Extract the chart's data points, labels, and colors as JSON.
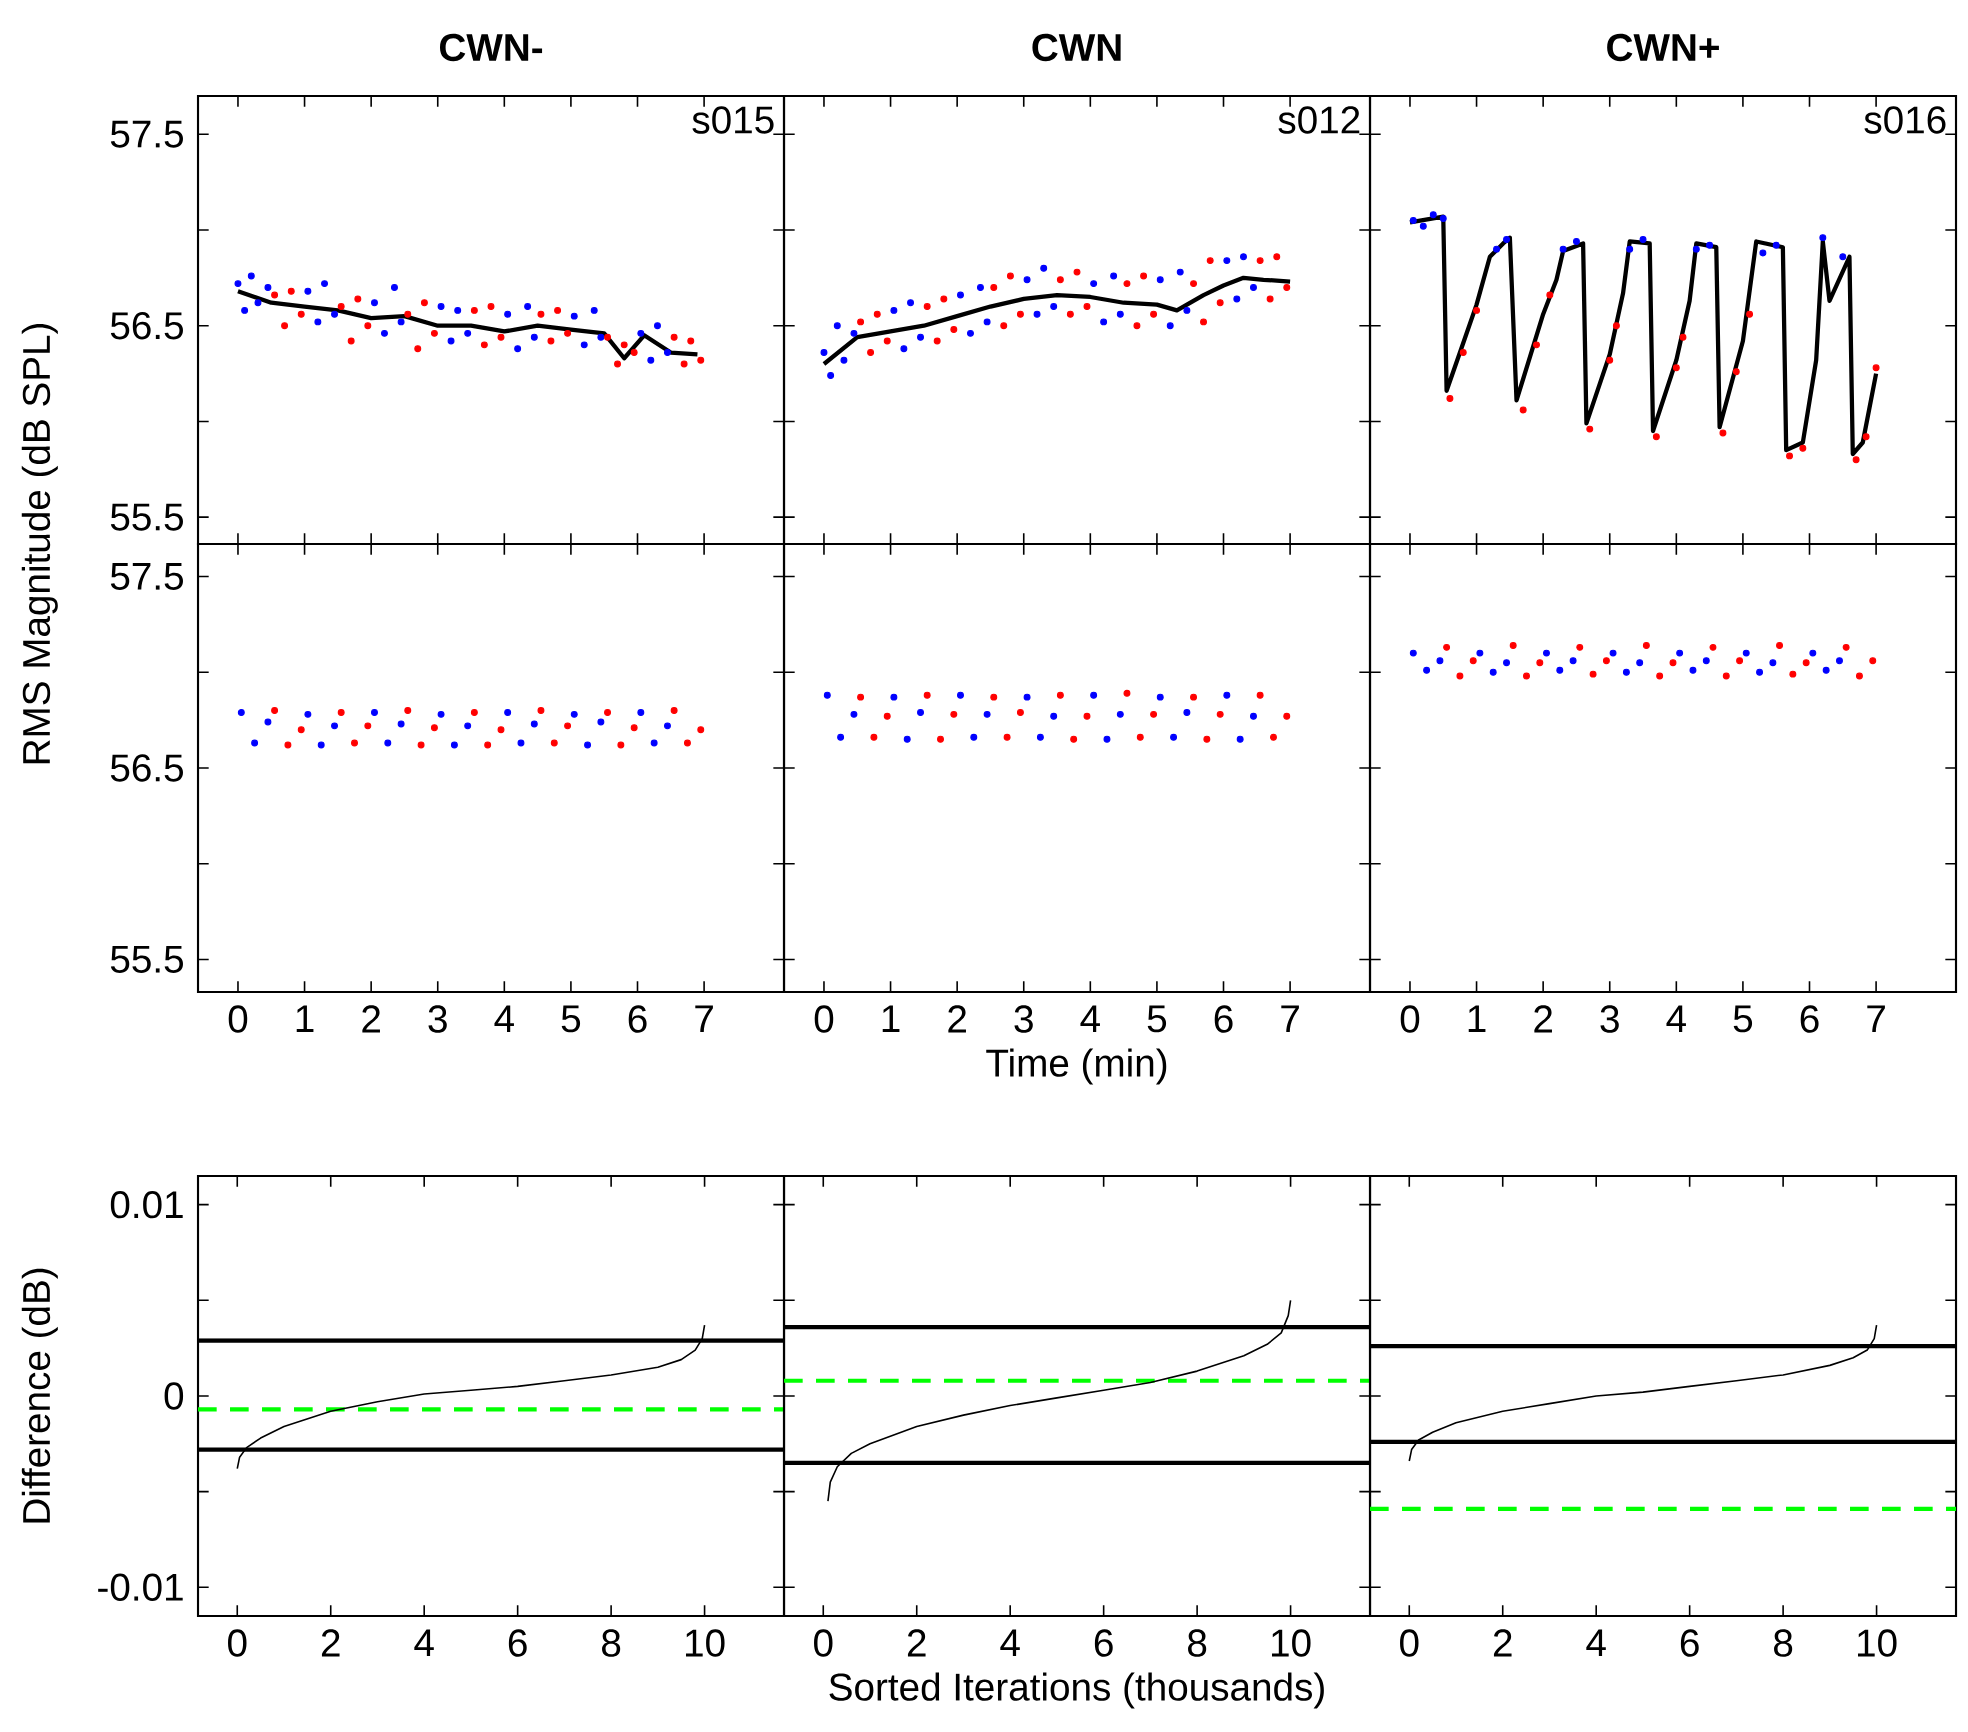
{
  "chart_data": [
    {
      "type": "scatter",
      "title": "CWN-",
      "annotations": [
        "s015"
      ],
      "ylabel": "RMS Magnitude (dB SPL)",
      "xlim": [
        -0.6,
        8.2
      ],
      "ylim": [
        55.36,
        57.7
      ],
      "xticks": [
        0,
        1,
        2,
        3,
        4,
        5,
        6,
        7
      ],
      "yticks": [
        55.5,
        {
          "value": 56,
          "label": null
        },
        56.5,
        {
          "value": 57,
          "label": null
        },
        57.5
      ],
      "tick_labels": "y",
      "marker": "circle",
      "series": [
        {
          "color": "#0000ff",
          "x": [
            0.0,
            0.1,
            0.2,
            0.3,
            0.45,
            1.05,
            1.2,
            1.3,
            1.45,
            2.05,
            2.2,
            2.35,
            2.45,
            3.05,
            3.2,
            3.3,
            3.45,
            4.05,
            4.2,
            4.35,
            4.45,
            5.05,
            5.2,
            5.35,
            5.45,
            6.05,
            6.2,
            6.3,
            6.45
          ],
          "values": [
            56.72,
            56.58,
            56.76,
            56.62,
            56.7,
            56.68,
            56.52,
            56.72,
            56.56,
            56.62,
            56.46,
            56.7,
            56.52,
            56.6,
            56.42,
            56.58,
            56.46,
            56.56,
            56.38,
            56.6,
            56.44,
            56.55,
            56.4,
            56.58,
            56.44,
            56.46,
            56.32,
            56.5,
            56.36
          ]
        },
        {
          "color": "#ff0000",
          "x": [
            0.55,
            0.7,
            0.8,
            0.95,
            1.55,
            1.7,
            1.8,
            1.95,
            2.55,
            2.7,
            2.8,
            2.95,
            3.55,
            3.7,
            3.8,
            3.95,
            4.55,
            4.7,
            4.8,
            4.95,
            5.55,
            5.7,
            5.8,
            5.95,
            6.55,
            6.7,
            6.8,
            6.95
          ],
          "values": [
            56.66,
            56.5,
            56.68,
            56.56,
            56.6,
            56.42,
            56.64,
            56.5,
            56.56,
            56.38,
            56.62,
            56.46,
            56.58,
            56.4,
            56.6,
            56.44,
            56.56,
            56.42,
            56.58,
            56.46,
            56.44,
            56.3,
            56.4,
            56.36,
            56.44,
            56.3,
            56.42,
            56.32
          ]
        },
        {
          "type": "line",
          "marker": "none",
          "color": "#000000",
          "x": [
            0,
            0.5,
            1,
            1.5,
            2,
            2.5,
            3,
            3.5,
            4,
            4.5,
            5,
            5.5,
            5.8,
            6.1,
            6.5,
            6.9
          ],
          "values": [
            56.68,
            56.62,
            56.6,
            56.58,
            56.54,
            56.55,
            56.5,
            56.5,
            56.47,
            56.5,
            56.48,
            56.46,
            56.33,
            56.45,
            56.36,
            56.35
          ]
        }
      ]
    },
    {
      "type": "scatter",
      "title": "CWN",
      "annotations": [
        "s012"
      ],
      "xlim": [
        -0.6,
        8.2
      ],
      "ylim": [
        55.36,
        57.7
      ],
      "xticks": [
        0,
        1,
        2,
        3,
        4,
        5,
        6,
        7
      ],
      "yticks": [
        55.5,
        {
          "value": 56,
          "label": null
        },
        56.5,
        {
          "value": 57,
          "label": null
        },
        57.5
      ],
      "tick_labels": false,
      "marker": "circle",
      "series": [
        {
          "color": "#0000ff",
          "x": [
            0.0,
            0.1,
            0.2,
            0.3,
            0.45,
            1.05,
            1.2,
            1.3,
            1.45,
            2.05,
            2.2,
            2.35,
            2.45,
            3.05,
            3.2,
            3.3,
            3.45,
            4.05,
            4.2,
            4.35,
            4.45,
            5.05,
            5.2,
            5.35,
            5.45,
            6.05,
            6.2,
            6.3,
            6.45
          ],
          "values": [
            56.36,
            56.24,
            56.5,
            56.32,
            56.46,
            56.58,
            56.38,
            56.62,
            56.44,
            56.66,
            56.46,
            56.7,
            56.52,
            56.74,
            56.56,
            56.8,
            56.6,
            56.72,
            56.52,
            56.76,
            56.56,
            56.74,
            56.5,
            56.78,
            56.58,
            56.84,
            56.64,
            56.86,
            56.7
          ]
        },
        {
          "color": "#ff0000",
          "x": [
            0.55,
            0.7,
            0.8,
            0.95,
            1.55,
            1.7,
            1.8,
            1.95,
            2.55,
            2.7,
            2.8,
            2.95,
            3.55,
            3.7,
            3.8,
            3.95,
            4.55,
            4.7,
            4.8,
            4.95,
            5.55,
            5.7,
            5.8,
            5.95,
            6.55,
            6.7,
            6.8,
            6.95
          ],
          "values": [
            56.52,
            56.36,
            56.56,
            56.42,
            56.6,
            56.42,
            56.64,
            56.48,
            56.7,
            56.5,
            56.76,
            56.56,
            56.74,
            56.56,
            56.78,
            56.6,
            56.72,
            56.5,
            56.76,
            56.56,
            56.72,
            56.52,
            56.84,
            56.62,
            56.84,
            56.64,
            56.86,
            56.7
          ]
        },
        {
          "type": "line",
          "marker": "none",
          "color": "#000000",
          "x": [
            0,
            0.5,
            1,
            1.5,
            2,
            2.5,
            3,
            3.5,
            4,
            4.5,
            5,
            5.3,
            5.7,
            6,
            6.3,
            6.6,
            7
          ],
          "values": [
            56.3,
            56.44,
            56.47,
            56.5,
            56.55,
            56.6,
            56.64,
            56.66,
            56.65,
            56.62,
            56.61,
            56.58,
            56.66,
            56.71,
            56.75,
            56.74,
            56.73
          ]
        }
      ]
    },
    {
      "type": "scatter",
      "title": "CWN+",
      "annotations": [
        "s016"
      ],
      "xlim": [
        -0.6,
        8.2
      ],
      "ylim": [
        55.36,
        57.7
      ],
      "xticks": [
        0,
        1,
        2,
        3,
        4,
        5,
        6,
        7
      ],
      "yticks": [
        55.5,
        {
          "value": 56,
          "label": null
        },
        56.5,
        {
          "value": 57,
          "label": null
        },
        57.5
      ],
      "tick_labels": false,
      "marker": "circle",
      "series": [
        {
          "color": "#0000ff",
          "x": [
            0.05,
            0.2,
            0.35,
            0.5,
            1.3,
            1.45,
            2.3,
            2.5,
            3.3,
            3.5,
            4.3,
            4.5,
            5.3,
            5.5,
            6.2,
            6.5
          ],
          "values": [
            57.05,
            57.02,
            57.08,
            57.06,
            56.9,
            56.95,
            56.9,
            56.94,
            56.9,
            56.95,
            56.9,
            56.92,
            56.88,
            56.92,
            56.96,
            56.86
          ]
        },
        {
          "color": "#ff0000",
          "x": [
            0.6,
            0.8,
            1.0,
            1.7,
            1.9,
            2.1,
            2.7,
            3.0,
            3.1,
            3.7,
            4.0,
            4.1,
            4.7,
            4.9,
            5.1,
            5.7,
            5.9,
            6.7,
            6.85,
            7.0
          ],
          "values": [
            56.12,
            56.36,
            56.58,
            56.06,
            56.4,
            56.66,
            55.96,
            56.32,
            56.5,
            55.92,
            56.28,
            56.44,
            55.94,
            56.26,
            56.56,
            55.82,
            55.86,
            55.8,
            55.92,
            56.28
          ]
        },
        {
          "type": "line",
          "marker": "none",
          "color": "#000000",
          "x": [
            0,
            0.5,
            0.55,
            0.8,
            1.0,
            1.2,
            1.4,
            1.5,
            1.6,
            2.0,
            2.2,
            2.3,
            2.6,
            2.65,
            3.0,
            3.2,
            3.3,
            3.6,
            3.65,
            4.0,
            4.2,
            4.3,
            4.6,
            4.65,
            5.0,
            5.2,
            5.6,
            5.65,
            5.9,
            6.1,
            6.2,
            6.3,
            6.6,
            6.65,
            6.8,
            7.0
          ],
          "values": [
            57.04,
            57.07,
            56.16,
            56.41,
            56.61,
            56.86,
            56.93,
            56.96,
            56.11,
            56.56,
            56.74,
            56.89,
            56.93,
            55.99,
            56.35,
            56.67,
            56.94,
            56.93,
            55.95,
            56.32,
            56.63,
            56.93,
            56.91,
            55.97,
            56.42,
            56.94,
            56.91,
            55.85,
            55.89,
            56.32,
            56.94,
            56.63,
            56.86,
            55.83,
            55.89,
            56.25
          ]
        }
      ]
    },
    {
      "type": "scatter",
      "xlim": [
        -0.6,
        8.2
      ],
      "ylim": [
        55.33,
        57.67
      ],
      "xticks": [
        0,
        1,
        2,
        3,
        4,
        5,
        6,
        7
      ],
      "yticks": [
        55.5,
        {
          "value": 56,
          "label": null
        },
        56.5,
        {
          "value": 57,
          "label": null
        },
        57.5
      ],
      "marker": "circle",
      "series": [
        {
          "color": "#0000ff",
          "x": [
            0.05,
            0.25,
            0.45,
            1.05,
            1.25,
            1.45,
            2.05,
            2.25,
            2.45,
            3.05,
            3.25,
            3.45,
            4.05,
            4.25,
            4.45,
            5.05,
            5.25,
            5.45,
            6.05,
            6.25,
            6.45
          ],
          "values": [
            56.79,
            56.63,
            56.74,
            56.78,
            56.62,
            56.72,
            56.79,
            56.63,
            56.73,
            56.78,
            56.62,
            56.72,
            56.79,
            56.63,
            56.73,
            56.78,
            56.62,
            56.74,
            56.79,
            56.63,
            56.72
          ]
        },
        {
          "color": "#ff0000",
          "x": [
            0.55,
            0.75,
            0.95,
            1.55,
            1.75,
            1.95,
            2.55,
            2.75,
            2.95,
            3.55,
            3.75,
            3.95,
            4.55,
            4.75,
            4.95,
            5.55,
            5.75,
            5.95,
            6.55,
            6.75,
            6.95
          ],
          "values": [
            56.8,
            56.62,
            56.7,
            56.79,
            56.63,
            56.72,
            56.8,
            56.62,
            56.71,
            56.79,
            56.62,
            56.7,
            56.8,
            56.63,
            56.72,
            56.79,
            56.62,
            56.71,
            56.8,
            56.63,
            56.7
          ]
        }
      ]
    },
    {
      "type": "scatter",
      "xlabel": "Time (min)",
      "xlim": [
        -0.6,
        8.2
      ],
      "ylim": [
        55.33,
        57.67
      ],
      "xticks": [
        0,
        1,
        2,
        3,
        4,
        5,
        6,
        7
      ],
      "yticks": [
        55.5,
        {
          "value": 56,
          "label": null
        },
        56.5,
        {
          "value": 57,
          "label": null
        },
        57.5
      ],
      "tick_labels": "x",
      "marker": "circle",
      "series": [
        {
          "color": "#0000ff",
          "x": [
            0.05,
            0.25,
            0.45,
            1.05,
            1.25,
            1.45,
            2.05,
            2.25,
            2.45,
            3.05,
            3.25,
            3.45,
            4.05,
            4.25,
            4.45,
            5.05,
            5.25,
            5.45,
            6.05,
            6.25,
            6.45
          ],
          "values": [
            56.88,
            56.66,
            56.78,
            56.87,
            56.65,
            56.79,
            56.88,
            56.66,
            56.78,
            56.87,
            56.66,
            56.77,
            56.88,
            56.65,
            56.78,
            56.87,
            56.66,
            56.79,
            56.88,
            56.65,
            56.77
          ]
        },
        {
          "color": "#ff0000",
          "x": [
            0.55,
            0.75,
            0.95,
            1.55,
            1.75,
            1.95,
            2.55,
            2.75,
            2.95,
            3.55,
            3.75,
            3.95,
            4.55,
            4.75,
            4.95,
            5.55,
            5.75,
            5.95,
            6.55,
            6.75,
            6.95
          ],
          "values": [
            56.87,
            56.66,
            56.77,
            56.88,
            56.65,
            56.78,
            56.87,
            56.66,
            56.79,
            56.88,
            56.65,
            56.77,
            56.89,
            56.66,
            56.78,
            56.87,
            56.65,
            56.78,
            56.88,
            56.66,
            56.77
          ]
        }
      ]
    },
    {
      "type": "scatter",
      "xlim": [
        -0.6,
        8.2
      ],
      "ylim": [
        55.33,
        57.67
      ],
      "xticks": [
        0,
        1,
        2,
        3,
        4,
        5,
        6,
        7
      ],
      "yticks": [
        55.5,
        {
          "value": 56,
          "label": null
        },
        56.5,
        {
          "value": 57,
          "label": null
        },
        57.5
      ],
      "tick_labels": "x",
      "marker": "circle",
      "series": [
        {
          "color": "#0000ff",
          "x": [
            0.05,
            0.25,
            0.45,
            1.05,
            1.25,
            1.45,
            2.05,
            2.25,
            2.45,
            3.05,
            3.25,
            3.45,
            4.05,
            4.25,
            4.45,
            5.05,
            5.25,
            5.45,
            6.05,
            6.25,
            6.45
          ],
          "values": [
            57.1,
            57.01,
            57.06,
            57.1,
            57.0,
            57.05,
            57.1,
            57.01,
            57.06,
            57.1,
            57.0,
            57.05,
            57.1,
            57.01,
            57.06,
            57.1,
            57.0,
            57.05,
            57.1,
            57.01,
            57.06
          ]
        },
        {
          "color": "#ff0000",
          "x": [
            0.55,
            0.75,
            0.95,
            1.55,
            1.75,
            1.95,
            2.55,
            2.75,
            2.95,
            3.55,
            3.75,
            3.95,
            4.55,
            4.75,
            4.95,
            5.55,
            5.75,
            5.95,
            6.55,
            6.75,
            6.95
          ],
          "values": [
            57.13,
            56.98,
            57.06,
            57.14,
            56.98,
            57.05,
            57.13,
            56.99,
            57.06,
            57.14,
            56.98,
            57.05,
            57.13,
            56.98,
            57.06,
            57.14,
            56.99,
            57.05,
            57.13,
            56.98,
            57.06
          ]
        }
      ]
    },
    {
      "type": "line",
      "ylabel": "Difference (dB)",
      "xlim": [
        -0.84,
        11.7
      ],
      "ylim": [
        -0.0115,
        0.0115
      ],
      "xticks": [
        0,
        2,
        4,
        6,
        8,
        10
      ],
      "yticks": [
        -0.01,
        {
          "value": -0.005,
          "label": null
        },
        0,
        {
          "value": 0.005,
          "label": null
        },
        0.01
      ],
      "series": [
        {
          "color": "#000000",
          "x": [
            0,
            0.05,
            0.2,
            0.5,
            1,
            2,
            3,
            4,
            5,
            6,
            7,
            8,
            9,
            9.5,
            9.8,
            9.95,
            10
          ],
          "values": [
            -0.0038,
            -0.0032,
            -0.0027,
            -0.0022,
            -0.0016,
            -0.0008,
            -0.0003,
            0.0001,
            0.0003,
            0.0005,
            0.0008,
            0.0011,
            0.0015,
            0.0019,
            0.0024,
            0.003,
            0.0037
          ]
        }
      ],
      "ref_lines": [
        {
          "axis": "y",
          "value": 0.0029,
          "color": "#000000",
          "line_style": "solid"
        },
        {
          "axis": "y",
          "value": -0.0028,
          "color": "#000000",
          "line_style": "solid"
        },
        {
          "axis": "y",
          "value": -0.0007,
          "color": "#00ff00",
          "line_style": "dashed"
        }
      ]
    },
    {
      "type": "line",
      "xlabel": "Sorted Iterations (thousands)",
      "xlim": [
        -0.84,
        11.7
      ],
      "ylim": [
        -0.0115,
        0.0115
      ],
      "xticks": [
        0,
        2,
        4,
        6,
        8,
        10
      ],
      "yticks": [
        -0.01,
        {
          "value": -0.005,
          "label": null
        },
        0,
        {
          "value": 0.005,
          "label": null
        },
        0.01
      ],
      "tick_labels": "x",
      "series": [
        {
          "color": "#000000",
          "x": [
            0.1,
            0.15,
            0.3,
            0.6,
            1,
            2,
            3,
            4,
            5,
            6,
            7,
            8,
            9,
            9.5,
            9.8,
            9.95,
            10
          ],
          "values": [
            -0.0055,
            -0.0045,
            -0.0037,
            -0.003,
            -0.0025,
            -0.0016,
            -0.001,
            -0.0005,
            -0.0001,
            0.0003,
            0.0007,
            0.0013,
            0.0021,
            0.0027,
            0.0033,
            0.0042,
            0.005
          ]
        }
      ],
      "ref_lines": [
        {
          "axis": "y",
          "value": 0.0036,
          "color": "#000000",
          "line_style": "solid"
        },
        {
          "axis": "y",
          "value": -0.0035,
          "color": "#000000",
          "line_style": "solid"
        },
        {
          "axis": "y",
          "value": 0.0008,
          "color": "#00ff00",
          "line_style": "dashed"
        }
      ]
    },
    {
      "type": "line",
      "xlim": [
        -0.84,
        11.7
      ],
      "ylim": [
        -0.0115,
        0.0115
      ],
      "xticks": [
        0,
        2,
        4,
        6,
        8,
        10
      ],
      "yticks": [
        -0.01,
        {
          "value": -0.005,
          "label": null
        },
        0,
        {
          "value": 0.005,
          "label": null
        },
        0.01
      ],
      "tick_labels": "x",
      "series": [
        {
          "color": "#000000",
          "x": [
            0,
            0.05,
            0.2,
            0.5,
            1,
            2,
            3,
            4,
            5,
            6,
            7,
            8,
            9,
            9.5,
            9.8,
            9.95,
            10
          ],
          "values": [
            -0.0034,
            -0.0028,
            -0.0023,
            -0.0019,
            -0.0014,
            -0.0008,
            -0.0004,
            0,
            0.0002,
            0.0005,
            0.0008,
            0.0011,
            0.0016,
            0.002,
            0.0024,
            0.003,
            0.0037
          ]
        }
      ],
      "ref_lines": [
        {
          "axis": "y",
          "value": 0.0026,
          "color": "#000000",
          "line_style": "solid"
        },
        {
          "axis": "y",
          "value": -0.0024,
          "color": "#000000",
          "line_style": "solid"
        },
        {
          "axis": "y",
          "value": -0.0059,
          "color": "#00ff00",
          "line_style": "dashed"
        }
      ]
    }
  ]
}
